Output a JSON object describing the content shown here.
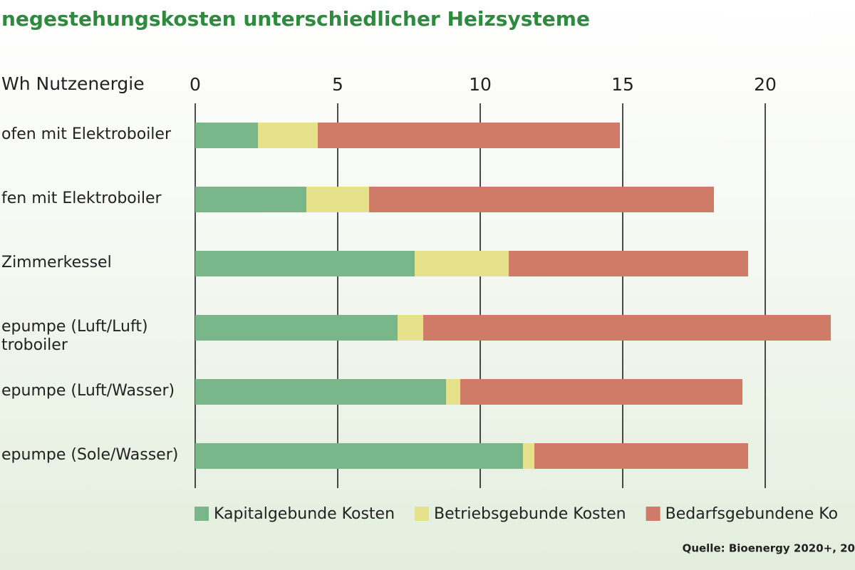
{
  "chart_data": {
    "type": "stacked-barh",
    "title": "negestehungskosten unterschiedlicher Heizsysteme",
    "axis_label": "Wh Nutzenergie",
    "categories": [
      "ofen mit Elektroboiler",
      "fen mit Elektroboiler",
      "Zimmerkessel",
      "epumpe (Luft/Luft)\ntroboiler",
      "epumpe (Luft/Wasser)",
      "epumpe (Sole/Wasser)"
    ],
    "series": [
      {
        "name": "Kapitalgebunde Kosten",
        "color": "#79b68a",
        "values": [
          2.2,
          3.9,
          7.7,
          7.1,
          8.8,
          11.5
        ]
      },
      {
        "name": "Betriebsgebunde Kosten",
        "color": "#e6e28c",
        "values": [
          2.1,
          2.2,
          3.3,
          0.9,
          0.5,
          0.4
        ]
      },
      {
        "name": "Bedarfsgebundene Ko",
        "color": "#cf7b67",
        "values": [
          10.6,
          12.1,
          8.4,
          14.3,
          9.9,
          7.5
        ]
      }
    ],
    "xlim": [
      0,
      23.15
    ],
    "xticks": [
      0,
      5,
      10,
      15,
      20
    ],
    "grid": true,
    "source": "Quelle: Bioenergy 2020+, 20"
  }
}
